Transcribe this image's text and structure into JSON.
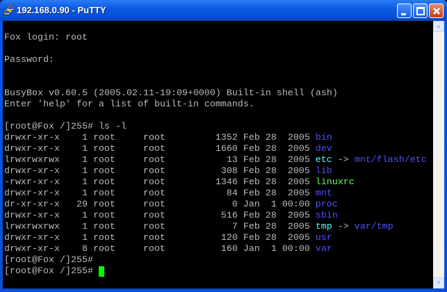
{
  "window": {
    "title": "192.168.0.90 - PuTTY",
    "icon": "putty-icon"
  },
  "colors": {
    "text": "#bbbbbb",
    "directory": "#5050ff",
    "symlink": "#55ffff",
    "executable": "#55ff55",
    "cursor": "#00ff00"
  },
  "session": {
    "login": "Fox login: root",
    "password": "Password:",
    "banner1": "BusyBox v0.60.5 (2005.02.11-19:09+0000) Built-in shell (ash)",
    "banner2": "Enter 'help' for a list of built-in commands.",
    "command": "[root@Fox /]255# ls -l",
    "prompt1": "[root@Fox /]255#",
    "prompt2": "[root@Fox /]255#"
  },
  "listing": [
    {
      "perms": "drwxr-xr-x",
      "links": "1",
      "owner": "root",
      "group": "root",
      "size": "1352",
      "date": "Feb 28  2005",
      "name": "bin",
      "type": "directory"
    },
    {
      "perms": "drwxr-xr-x",
      "links": "1",
      "owner": "root",
      "group": "root",
      "size": "1660",
      "date": "Feb 28  2005",
      "name": "dev",
      "type": "directory"
    },
    {
      "perms": "lrwxrwxrwx",
      "links": "1",
      "owner": "root",
      "group": "root",
      "size": "13",
      "date": "Feb 28  2005",
      "name": "etc",
      "type": "symlink",
      "arrow": "->",
      "target": "mnt/flash/etc"
    },
    {
      "perms": "drwxr-xr-x",
      "links": "1",
      "owner": "root",
      "group": "root",
      "size": "308",
      "date": "Feb 28  2005",
      "name": "lib",
      "type": "directory"
    },
    {
      "perms": "-rwxr-xr-x",
      "links": "1",
      "owner": "root",
      "group": "root",
      "size": "1346",
      "date": "Feb 28  2005",
      "name": "linuxrc",
      "type": "executable"
    },
    {
      "perms": "drwxr-xr-x",
      "links": "1",
      "owner": "root",
      "group": "root",
      "size": "84",
      "date": "Feb 28  2005",
      "name": "mnt",
      "type": "directory"
    },
    {
      "perms": "dr-xr-xr-x",
      "links": "29",
      "owner": "root",
      "group": "root",
      "size": "0",
      "date": "Jan  1 00:00",
      "name": "proc",
      "type": "directory"
    },
    {
      "perms": "drwxr-xr-x",
      "links": "1",
      "owner": "root",
      "group": "root",
      "size": "516",
      "date": "Feb 28  2005",
      "name": "sbin",
      "type": "directory"
    },
    {
      "perms": "lrwxrwxrwx",
      "links": "1",
      "owner": "root",
      "group": "root",
      "size": "7",
      "date": "Feb 28  2005",
      "name": "tmp",
      "type": "symlink",
      "arrow": "->",
      "target": "var/tmp"
    },
    {
      "perms": "drwxr-xr-x",
      "links": "1",
      "owner": "root",
      "group": "root",
      "size": "120",
      "date": "Feb 28  2005",
      "name": "usr",
      "type": "directory"
    },
    {
      "perms": "drwxr-xr-x",
      "links": "8",
      "owner": "root",
      "group": "root",
      "size": "160",
      "date": "Jan  1 00:00",
      "name": "var",
      "type": "directory"
    }
  ]
}
